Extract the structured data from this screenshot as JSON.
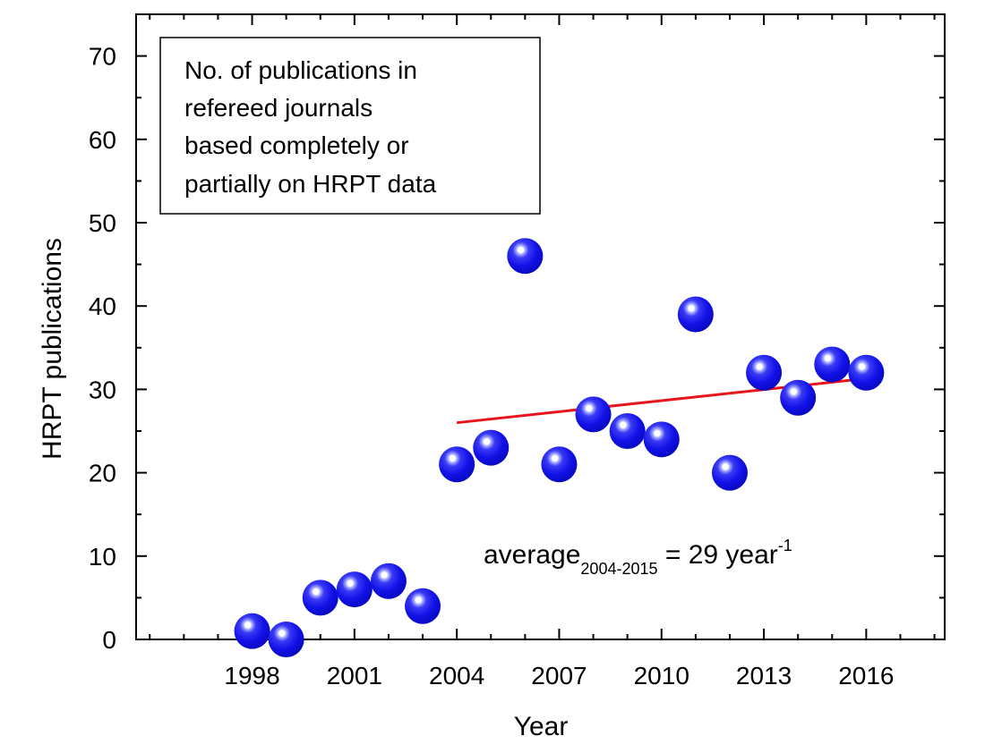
{
  "chart_data": {
    "type": "scatter",
    "xlabel": "Year",
    "ylabel": "HRPT publications",
    "xlim": [
      1994.6,
      2018.3
    ],
    "ylim": [
      0,
      75
    ],
    "x_ticks": [
      1998,
      2001,
      2004,
      2007,
      2010,
      2013,
      2016
    ],
    "y_ticks": [
      0,
      10,
      20,
      30,
      40,
      50,
      60,
      70
    ],
    "x_minor_step": 1,
    "y_minor_step": 5,
    "grid": false,
    "marker_color": "#1010ee",
    "series": [
      {
        "points": [
          {
            "x": 1998,
            "y": 1
          },
          {
            "x": 1999,
            "y": 0
          },
          {
            "x": 2000,
            "y": 5
          },
          {
            "x": 2001,
            "y": 6
          },
          {
            "x": 2002,
            "y": 7
          },
          {
            "x": 2003,
            "y": 4
          },
          {
            "x": 2004,
            "y": 21
          },
          {
            "x": 2005,
            "y": 23
          },
          {
            "x": 2006,
            "y": 46
          },
          {
            "x": 2007,
            "y": 21
          },
          {
            "x": 2008,
            "y": 27
          },
          {
            "x": 2009,
            "y": 25
          },
          {
            "x": 2010,
            "y": 24
          },
          {
            "x": 2011,
            "y": 39
          },
          {
            "x": 2012,
            "y": 20
          },
          {
            "x": 2013,
            "y": 32
          },
          {
            "x": 2014,
            "y": 29
          },
          {
            "x": 2015,
            "y": 33
          },
          {
            "x": 2016,
            "y": 32
          }
        ]
      }
    ],
    "trend_line": {
      "color": "#e8141c",
      "x": [
        2004,
        2016
      ],
      "y": [
        26,
        31.3
      ]
    },
    "annotations": {
      "note_lines": [
        "No. of publications in",
        "refereed journals",
        "based completely or",
        "partially on HRPT data"
      ],
      "average": {
        "main": "average",
        "subscript": "2004-2015",
        "value": " = 29 year",
        "superscript": "-1"
      }
    }
  }
}
